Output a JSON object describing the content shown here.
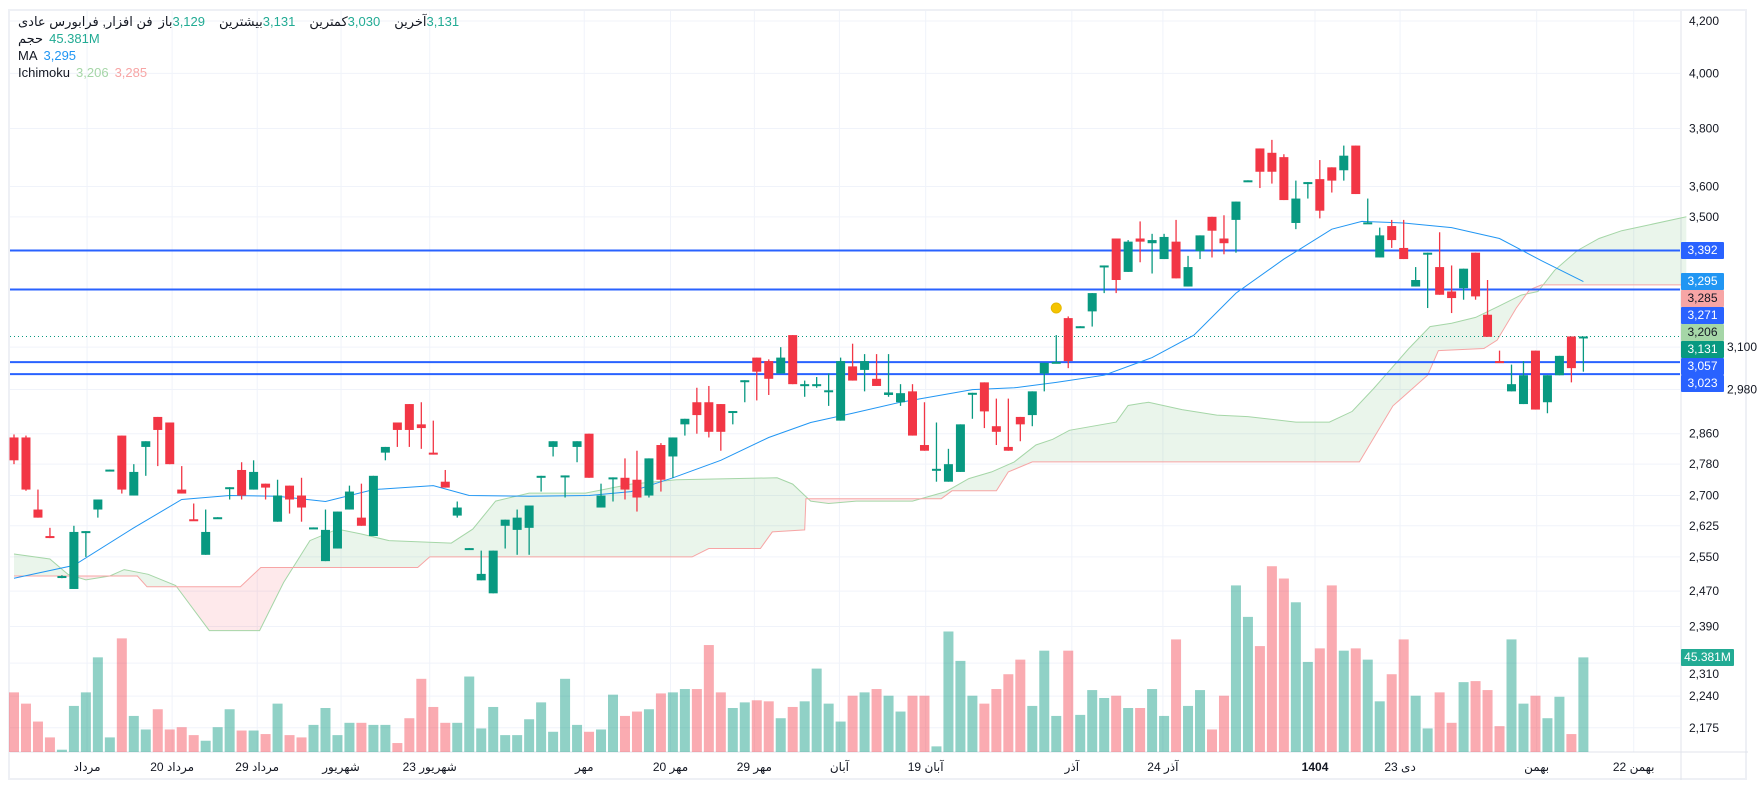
{
  "legend": {
    "symbol_title": "فن افزار, فرابورس عادی",
    "ohlc": [
      {
        "label": "باز",
        "value": "3,129"
      },
      {
        "label": "بیشترین",
        "value": "3,131"
      },
      {
        "label": "کمترین",
        "value": "3,030"
      },
      {
        "label": "آخرین",
        "value": "3,131"
      }
    ],
    "volume_label": "حجم",
    "volume_value": "45.381M",
    "ma_label": "MA",
    "ma_value": "3,295",
    "ichimoku_label": "Ichimoku",
    "ichimoku_value_1": "3,206",
    "ichimoku_value_2": "3,285"
  },
  "price_labels": [
    {
      "text": "3,392",
      "value": 3392,
      "bg": "#2962ff",
      "fg": "#ffffff"
    },
    {
      "text": "3,295",
      "value": 3295,
      "bg": "#2196f3",
      "fg": "#ffffff"
    },
    {
      "text": "3,285",
      "value": 3285,
      "bg": "#f7a5a5",
      "fg": "#131722"
    },
    {
      "text": "3,271",
      "value": 3271,
      "bg": "#2962ff",
      "fg": "#ffffff"
    },
    {
      "text": "3,206",
      "value": 3206,
      "bg": "#a5d6a7",
      "fg": "#131722"
    },
    {
      "text": "3,131",
      "value": 3131,
      "bg": "#089981",
      "fg": "#ffffff"
    },
    {
      "text": "3,057",
      "value": 3057,
      "bg": "#2962ff",
      "fg": "#ffffff"
    },
    {
      "text": "3,023",
      "value": 3023,
      "bg": "#2962ff",
      "fg": "#ffffff"
    }
  ],
  "volume_label": {
    "text": "45.381M",
    "bg": "#22ab94"
  },
  "colors": {
    "up": "#089981",
    "down": "#f23645",
    "ma": "#2196f3",
    "hline": "#2962ff",
    "span_a": "#a5d6a7",
    "span_b": "#f7a5a5",
    "marker": "#f5c400"
  },
  "chart_data": {
    "type": "candlestick",
    "y_scale": "log",
    "ylim": [
      2150,
      4250
    ],
    "grid": true,
    "y_ticks": [
      "4,200",
      "4,000",
      "3,800",
      "3,600",
      "3,500",
      "3,100",
      "2,980",
      "2,860",
      "2,780",
      "2,700",
      "2,625",
      "2,550",
      "2,470",
      "2,390",
      "2,310",
      "2,240",
      "2,175"
    ],
    "x_ticks": [
      {
        "label": "مرداد",
        "index": 6.1
      },
      {
        "label": "20 مرداد",
        "index": 13.2
      },
      {
        "label": "29 مرداد",
        "index": 20.3
      },
      {
        "label": "شهریور",
        "index": 27.3
      },
      {
        "label": "23 شهریور",
        "index": 34.7
      },
      {
        "label": "مهر",
        "index": 47.6
      },
      {
        "label": "20 مهر",
        "index": 54.8
      },
      {
        "label": "29 مهر",
        "index": 61.8
      },
      {
        "label": "آبان",
        "index": 68.9
      },
      {
        "label": "19 آبان",
        "index": 76.1
      },
      {
        "label": "آذر",
        "index": 88.3
      },
      {
        "label": "24 آذر",
        "index": 95.9
      },
      {
        "label": "1404",
        "index": 108.6,
        "bold": true
      },
      {
        "label": "23 دی",
        "index": 115.7
      },
      {
        "label": "بهمن",
        "index": 127.1
      },
      {
        "label": "22 بهمن",
        "index": 135.2
      }
    ],
    "candles_ohlc": [
      [
        2850,
        2858,
        2780,
        2790
      ],
      [
        2850,
        2855,
        2712,
        2715
      ],
      [
        2665,
        2715,
        2645,
        2645
      ],
      [
        2600,
        2620,
        2595,
        2598
      ],
      [
        2505,
        2507,
        2500,
        2505
      ],
      [
        2475,
        2625,
        2475,
        2610
      ],
      [
        2610,
        2612,
        2550,
        2612
      ],
      [
        2665,
        2690,
        2645,
        2690
      ],
      [
        2765,
        2766,
        2764,
        2766
      ],
      [
        2855,
        2855,
        2705,
        2715
      ],
      [
        2700,
        2780,
        2700,
        2760
      ],
      [
        2825,
        2840,
        2750,
        2840
      ],
      [
        2905,
        2905,
        2775,
        2870
      ],
      [
        2890,
        2890,
        2780,
        2780
      ],
      [
        2715,
        2775,
        2705,
        2705
      ],
      [
        2641,
        2680,
        2640,
        2640
      ],
      [
        2555,
        2665,
        2555,
        2610
      ],
      [
        2645,
        2646,
        2644,
        2646
      ],
      [
        2720,
        2721,
        2690,
        2721
      ],
      [
        2765,
        2785,
        2690,
        2700
      ],
      [
        2715,
        2790,
        2715,
        2760
      ],
      [
        2730,
        2730,
        2690,
        2720
      ],
      [
        2635,
        2740,
        2635,
        2700
      ],
      [
        2725,
        2725,
        2655,
        2690
      ],
      [
        2700,
        2745,
        2635,
        2670
      ],
      [
        2620,
        2621,
        2619,
        2621
      ],
      [
        2540,
        2665,
        2540,
        2615
      ],
      [
        2570,
        2660,
        2570,
        2660
      ],
      [
        2665,
        2725,
        2665,
        2710
      ],
      [
        2645,
        2730,
        2625,
        2625
      ],
      [
        2600,
        2750,
        2600,
        2750
      ],
      [
        2810,
        2825,
        2790,
        2825
      ],
      [
        2890,
        2890,
        2825,
        2870
      ],
      [
        2940,
        2940,
        2825,
        2870
      ],
      [
        2885,
        2945,
        2820,
        2875
      ],
      [
        2810,
        2895,
        2805,
        2805
      ],
      [
        2735,
        2765,
        2720,
        2720
      ],
      [
        2650,
        2685,
        2645,
        2670
      ],
      [
        2570,
        2571,
        2569,
        2571
      ],
      [
        2495,
        2565,
        2495,
        2510
      ],
      [
        2465,
        2565,
        2465,
        2565
      ],
      [
        2625,
        2640,
        2570,
        2640
      ],
      [
        2615,
        2665,
        2555,
        2645
      ],
      [
        2620,
        2675,
        2555,
        2675
      ],
      [
        2748,
        2750,
        2710,
        2750
      ],
      [
        2825,
        2840,
        2800,
        2840
      ],
      [
        2750,
        2751,
        2695,
        2751
      ],
      [
        2825,
        2840,
        2785,
        2840
      ],
      [
        2860,
        2860,
        2745,
        2745
      ],
      [
        2670,
        2730,
        2670,
        2700
      ],
      [
        2745,
        2746,
        2685,
        2746
      ],
      [
        2745,
        2795,
        2690,
        2715
      ],
      [
        2740,
        2815,
        2660,
        2695
      ],
      [
        2700,
        2795,
        2695,
        2795
      ],
      [
        2830,
        2835,
        2710,
        2740
      ],
      [
        2800,
        2850,
        2745,
        2850
      ],
      [
        2885,
        2900,
        2855,
        2900
      ],
      [
        2945,
        2985,
        2860,
        2910
      ],
      [
        2945,
        2990,
        2850,
        2865
      ],
      [
        2940,
        2940,
        2815,
        2865
      ],
      [
        2920,
        2921,
        2885,
        2921
      ],
      [
        3005,
        3006,
        2945,
        3006
      ],
      [
        3070,
        3070,
        2950,
        3030
      ],
      [
        3060,
        3065,
        2965,
        3010
      ],
      [
        3025,
        3100,
        3025,
        3070
      ],
      [
        3135,
        3135,
        2995,
        2995
      ],
      [
        2990,
        3005,
        2960,
        2995
      ],
      [
        2990,
        3015,
        2985,
        2995
      ],
      [
        2975,
        3025,
        2935,
        2978
      ],
      [
        2895,
        3070,
        2895,
        3060
      ],
      [
        3045,
        3110,
        3005,
        3005
      ],
      [
        3035,
        3080,
        2975,
        3060
      ],
      [
        3010,
        3080,
        2990,
        2990
      ],
      [
        2965,
        3080,
        2960,
        2972
      ],
      [
        2945,
        2995,
        2935,
        2970
      ],
      [
        2975,
        2995,
        2855,
        2855
      ],
      [
        2830,
        2945,
        2815,
        2815
      ],
      [
        2765,
        2890,
        2735,
        2768
      ],
      [
        2735,
        2820,
        2735,
        2780
      ],
      [
        2760,
        2885,
        2760,
        2885
      ],
      [
        2970,
        2971,
        2900,
        2971
      ],
      [
        3000,
        3000,
        2875,
        2920
      ],
      [
        2880,
        2955,
        2830,
        2865
      ],
      [
        2825,
        2955,
        2815,
        2815
      ],
      [
        2905,
        2905,
        2840,
        2885
      ],
      [
        2910,
        2975,
        2880,
        2975
      ],
      [
        3025,
        3055,
        2975,
        3055
      ],
      [
        3055,
        3135,
        3055,
        3058
      ],
      [
        3185,
        3190,
        3040,
        3060
      ],
      [
        3160,
        3161,
        3159,
        3161
      ],
      [
        3205,
        3260,
        3160,
        3260
      ],
      [
        3340,
        3345,
        3260,
        3345
      ],
      [
        3430,
        3430,
        3260,
        3300
      ],
      [
        3325,
        3425,
        3325,
        3420
      ],
      [
        3430,
        3485,
        3355,
        3420
      ],
      [
        3415,
        3445,
        3320,
        3425
      ],
      [
        3365,
        3445,
        3365,
        3435
      ],
      [
        3420,
        3490,
        3305,
        3305
      ],
      [
        3280,
        3375,
        3280,
        3340
      ],
      [
        3390,
        3440,
        3365,
        3440
      ],
      [
        3500,
        3500,
        3370,
        3455
      ],
      [
        3430,
        3505,
        3380,
        3415
      ],
      [
        3490,
        3550,
        3385,
        3550
      ],
      [
        3620,
        3621,
        3619,
        3621
      ],
      [
        3730,
        3730,
        3595,
        3650
      ],
      [
        3715,
        3760,
        3610,
        3650
      ],
      [
        3700,
        3710,
        3555,
        3555
      ],
      [
        3480,
        3620,
        3460,
        3560
      ],
      [
        3610,
        3615,
        3560,
        3615
      ],
      [
        3625,
        3690,
        3495,
        3520
      ],
      [
        3665,
        3665,
        3580,
        3620
      ],
      [
        3655,
        3740,
        3620,
        3705
      ],
      [
        3740,
        3740,
        3575,
        3575
      ],
      [
        3480,
        3560,
        3480,
        3482
      ],
      [
        3370,
        3465,
        3370,
        3440
      ],
      [
        3470,
        3490,
        3400,
        3425
      ],
      [
        3400,
        3490,
        3365,
        3365
      ],
      [
        3280,
        3340,
        3280,
        3300
      ],
      [
        3380,
        3385,
        3215,
        3385
      ],
      [
        3340,
        3450,
        3255,
        3255
      ],
      [
        3265,
        3345,
        3200,
        3245
      ],
      [
        3275,
        3335,
        3240,
        3335
      ],
      [
        3385,
        3385,
        3240,
        3250
      ],
      [
        3195,
        3300,
        3130,
        3130
      ],
      [
        3060,
        3090,
        3058,
        3058
      ],
      [
        2975,
        3050,
        2975,
        2995
      ],
      [
        2940,
        3060,
        2940,
        3020
      ],
      [
        3090,
        3090,
        2925,
        2925
      ],
      [
        2945,
        3020,
        2915,
        3020
      ],
      [
        3020,
        3075,
        3020,
        3075
      ],
      [
        3131,
        3131,
        3000,
        3040
      ],
      [
        3129,
        3131,
        3030,
        3131
      ]
    ],
    "volume_millions": [
      28.6,
      23.2,
      14.6,
      7.0,
      1.1,
      22.1,
      28.6,
      45.4,
      7.0,
      54.5,
      17.3,
      10.8,
      20.5,
      10.8,
      11.9,
      8.1,
      5.4,
      11.9,
      20.5,
      10.3,
      10.3,
      8.6,
      23.2,
      8.1,
      7.0,
      13.0,
      21.1,
      8.1,
      14.0,
      14.0,
      13.0,
      13.0,
      4.3,
      16.2,
      35.1,
      21.6,
      14.0,
      14.0,
      36.2,
      11.3,
      21.6,
      8.1,
      8.1,
      15.7,
      23.8,
      9.7,
      35.1,
      13.0,
      9.7,
      10.8,
      27.5,
      17.3,
      19.4,
      20.5,
      28.1,
      28.6,
      30.2,
      30.2,
      51.3,
      28.6,
      21.1,
      23.8,
      24.8,
      24.3,
      16.2,
      21.6,
      24.3,
      40.0,
      23.2,
      14.6,
      27.0,
      28.6,
      30.2,
      27.0,
      19.4,
      27.0,
      27.0,
      2.7,
      57.8,
      43.7,
      27.0,
      23.2,
      30.2,
      37.3,
      44.3,
      22.1,
      48.6,
      17.3,
      48.6,
      17.8,
      29.7,
      25.9,
      27.0,
      21.1,
      21.1,
      30.2,
      17.3,
      54.0,
      22.1,
      29.7,
      10.8,
      27.0,
      79.9,
      64.8,
      50.8,
      89.1,
      83.2,
      71.8,
      43.2,
      49.7,
      79.9,
      48.6,
      49.7,
      44.3,
      24.3,
      37.3,
      54.0,
      27.0,
      11.3,
      28.6,
      14.0,
      33.5,
      34.0,
      29.7,
      12.4,
      54.0,
      23.2,
      27.0,
      16.2,
      26.5,
      8.6,
      45.381
    ],
    "ma": [
      [
        0,
        2500
      ],
      [
        5,
        2530
      ],
      [
        10,
        2620
      ],
      [
        14,
        2690
      ],
      [
        18,
        2700
      ],
      [
        22,
        2698
      ],
      [
        26,
        2685
      ],
      [
        30,
        2715
      ],
      [
        35,
        2725
      ],
      [
        38,
        2700
      ],
      [
        43,
        2698
      ],
      [
        48,
        2700
      ],
      [
        51.5,
        2710
      ],
      [
        55,
        2745
      ],
      [
        59,
        2790
      ],
      [
        63,
        2850
      ],
      [
        66.5,
        2890
      ],
      [
        70,
        2915
      ],
      [
        74,
        2945
      ],
      [
        80,
        2980
      ],
      [
        83.5,
        2985
      ],
      [
        87,
        3000
      ],
      [
        91,
        3020
      ],
      [
        95,
        3070
      ],
      [
        98.5,
        3135
      ],
      [
        102,
        3260
      ],
      [
        106,
        3365
      ],
      [
        110,
        3460
      ],
      [
        112.5,
        3485
      ],
      [
        116,
        3480
      ],
      [
        120,
        3465
      ],
      [
        124,
        3430
      ],
      [
        127.5,
        3360
      ],
      [
        131,
        3295
      ]
    ],
    "ichimoku_span_a": [
      [
        0,
        2557
      ],
      [
        3,
        2545
      ],
      [
        4.5,
        2509
      ],
      [
        6,
        2496
      ],
      [
        8,
        2505
      ],
      [
        9.2,
        2520
      ],
      [
        11.2,
        2509
      ],
      [
        13.5,
        2483
      ],
      [
        16.3,
        2381
      ],
      [
        20.5,
        2381
      ],
      [
        22.5,
        2490
      ],
      [
        24.7,
        2589
      ],
      [
        27,
        2617
      ],
      [
        29,
        2605
      ],
      [
        31.3,
        2589
      ],
      [
        36.5,
        2583
      ],
      [
        38.3,
        2617
      ],
      [
        40.2,
        2686
      ],
      [
        43,
        2706
      ],
      [
        47.7,
        2706
      ],
      [
        51.5,
        2729
      ],
      [
        55.3,
        2740
      ],
      [
        60,
        2743
      ],
      [
        63.7,
        2745
      ],
      [
        65,
        2729
      ],
      [
        66.5,
        2686
      ],
      [
        68,
        2680
      ],
      [
        70.3,
        2686
      ],
      [
        75,
        2686
      ],
      [
        77.8,
        2710
      ],
      [
        79.7,
        2743
      ],
      [
        81.6,
        2760
      ],
      [
        83.5,
        2786
      ],
      [
        85.3,
        2830
      ],
      [
        86.7,
        2845
      ],
      [
        88.1,
        2869
      ],
      [
        92,
        2891
      ],
      [
        93,
        2936
      ],
      [
        94.7,
        2945
      ],
      [
        97.5,
        2925
      ],
      [
        100.4,
        2910
      ],
      [
        103,
        2906
      ],
      [
        107,
        2891
      ],
      [
        109.8,
        2891
      ],
      [
        111.7,
        2920
      ],
      [
        113.5,
        2983
      ],
      [
        116.4,
        3095
      ],
      [
        118.2,
        3160
      ],
      [
        120,
        3170
      ],
      [
        122,
        3187
      ],
      [
        123.9,
        3220
      ],
      [
        125.8,
        3254
      ],
      [
        127.2,
        3265
      ],
      [
        128.6,
        3330
      ],
      [
        130.5,
        3392
      ],
      [
        132.3,
        3430
      ],
      [
        134.2,
        3455
      ],
      [
        136,
        3470
      ],
      [
        139.6,
        3500
      ]
    ],
    "ichimoku_span_b": [
      [
        0,
        2505
      ],
      [
        10.3,
        2505
      ],
      [
        11.1,
        2480
      ],
      [
        18.9,
        2480
      ],
      [
        20.6,
        2525
      ],
      [
        33.7,
        2525
      ],
      [
        34.7,
        2550
      ],
      [
        56.6,
        2550
      ],
      [
        58,
        2570
      ],
      [
        62.3,
        2570
      ],
      [
        63.3,
        2610
      ],
      [
        66,
        2615
      ],
      [
        66.1,
        2692
      ],
      [
        77.4,
        2692
      ],
      [
        78.3,
        2712
      ],
      [
        82,
        2712
      ],
      [
        83,
        2760
      ],
      [
        85,
        2786
      ],
      [
        112.3,
        2786
      ],
      [
        115.1,
        2935
      ],
      [
        118,
        3020
      ],
      [
        118.9,
        3090
      ],
      [
        122.7,
        3096
      ],
      [
        123.8,
        3120
      ],
      [
        125.4,
        3215
      ],
      [
        126.5,
        3270
      ],
      [
        127.5,
        3285
      ],
      [
        139.6,
        3285
      ]
    ],
    "horizontal_lines": [
      3392,
      3271,
      3057,
      3023
    ],
    "last_price": 3131,
    "markers": [
      {
        "index": 88,
        "value": 3215
      }
    ]
  }
}
